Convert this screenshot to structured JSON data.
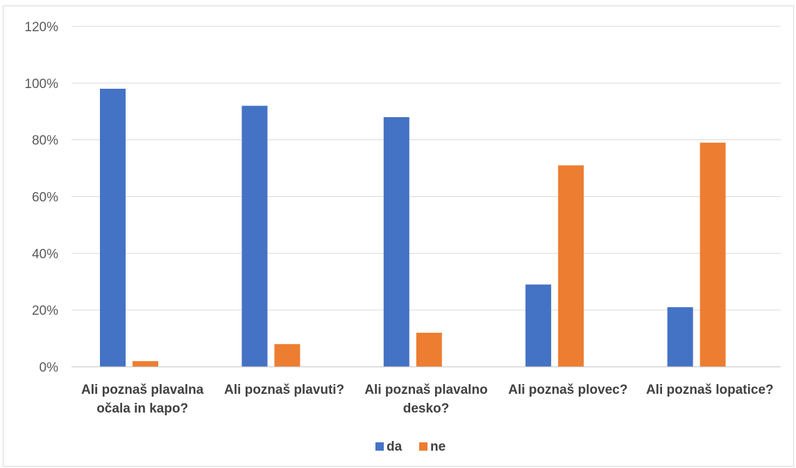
{
  "chart_data": {
    "type": "bar",
    "title": "",
    "xlabel": "",
    "ylabel": "",
    "ylim": [
      0,
      120
    ],
    "yticks": [
      0,
      20,
      40,
      60,
      80,
      100,
      120
    ],
    "ytick_suffix": "%",
    "grid": "horizontal",
    "legend_position": "bottom",
    "categories": [
      "Ali poznaš plavalna očala in kapo?",
      "Ali poznaš plavuti?",
      "Ali poznaš plavalno desko?",
      "Ali poznaš plovec?",
      "Ali poznaš lopatice?"
    ],
    "category_lines": [
      [
        "Ali poznaš plavalna",
        "očala in kapo?"
      ],
      [
        "Ali poznaš plavuti?"
      ],
      [
        "Ali poznaš plavalno",
        "desko?"
      ],
      [
        "Ali poznaš plovec?"
      ],
      [
        "Ali poznaš lopatice?"
      ]
    ],
    "series": [
      {
        "name": "da",
        "color": "#4472c4",
        "values": [
          98,
          92,
          88,
          29,
          21
        ]
      },
      {
        "name": "ne",
        "color": "#ed7d31",
        "values": [
          2,
          8,
          12,
          71,
          79
        ]
      }
    ],
    "colors": {
      "grid": "#d9d9d9",
      "axis": "#bfbfbf"
    }
  }
}
